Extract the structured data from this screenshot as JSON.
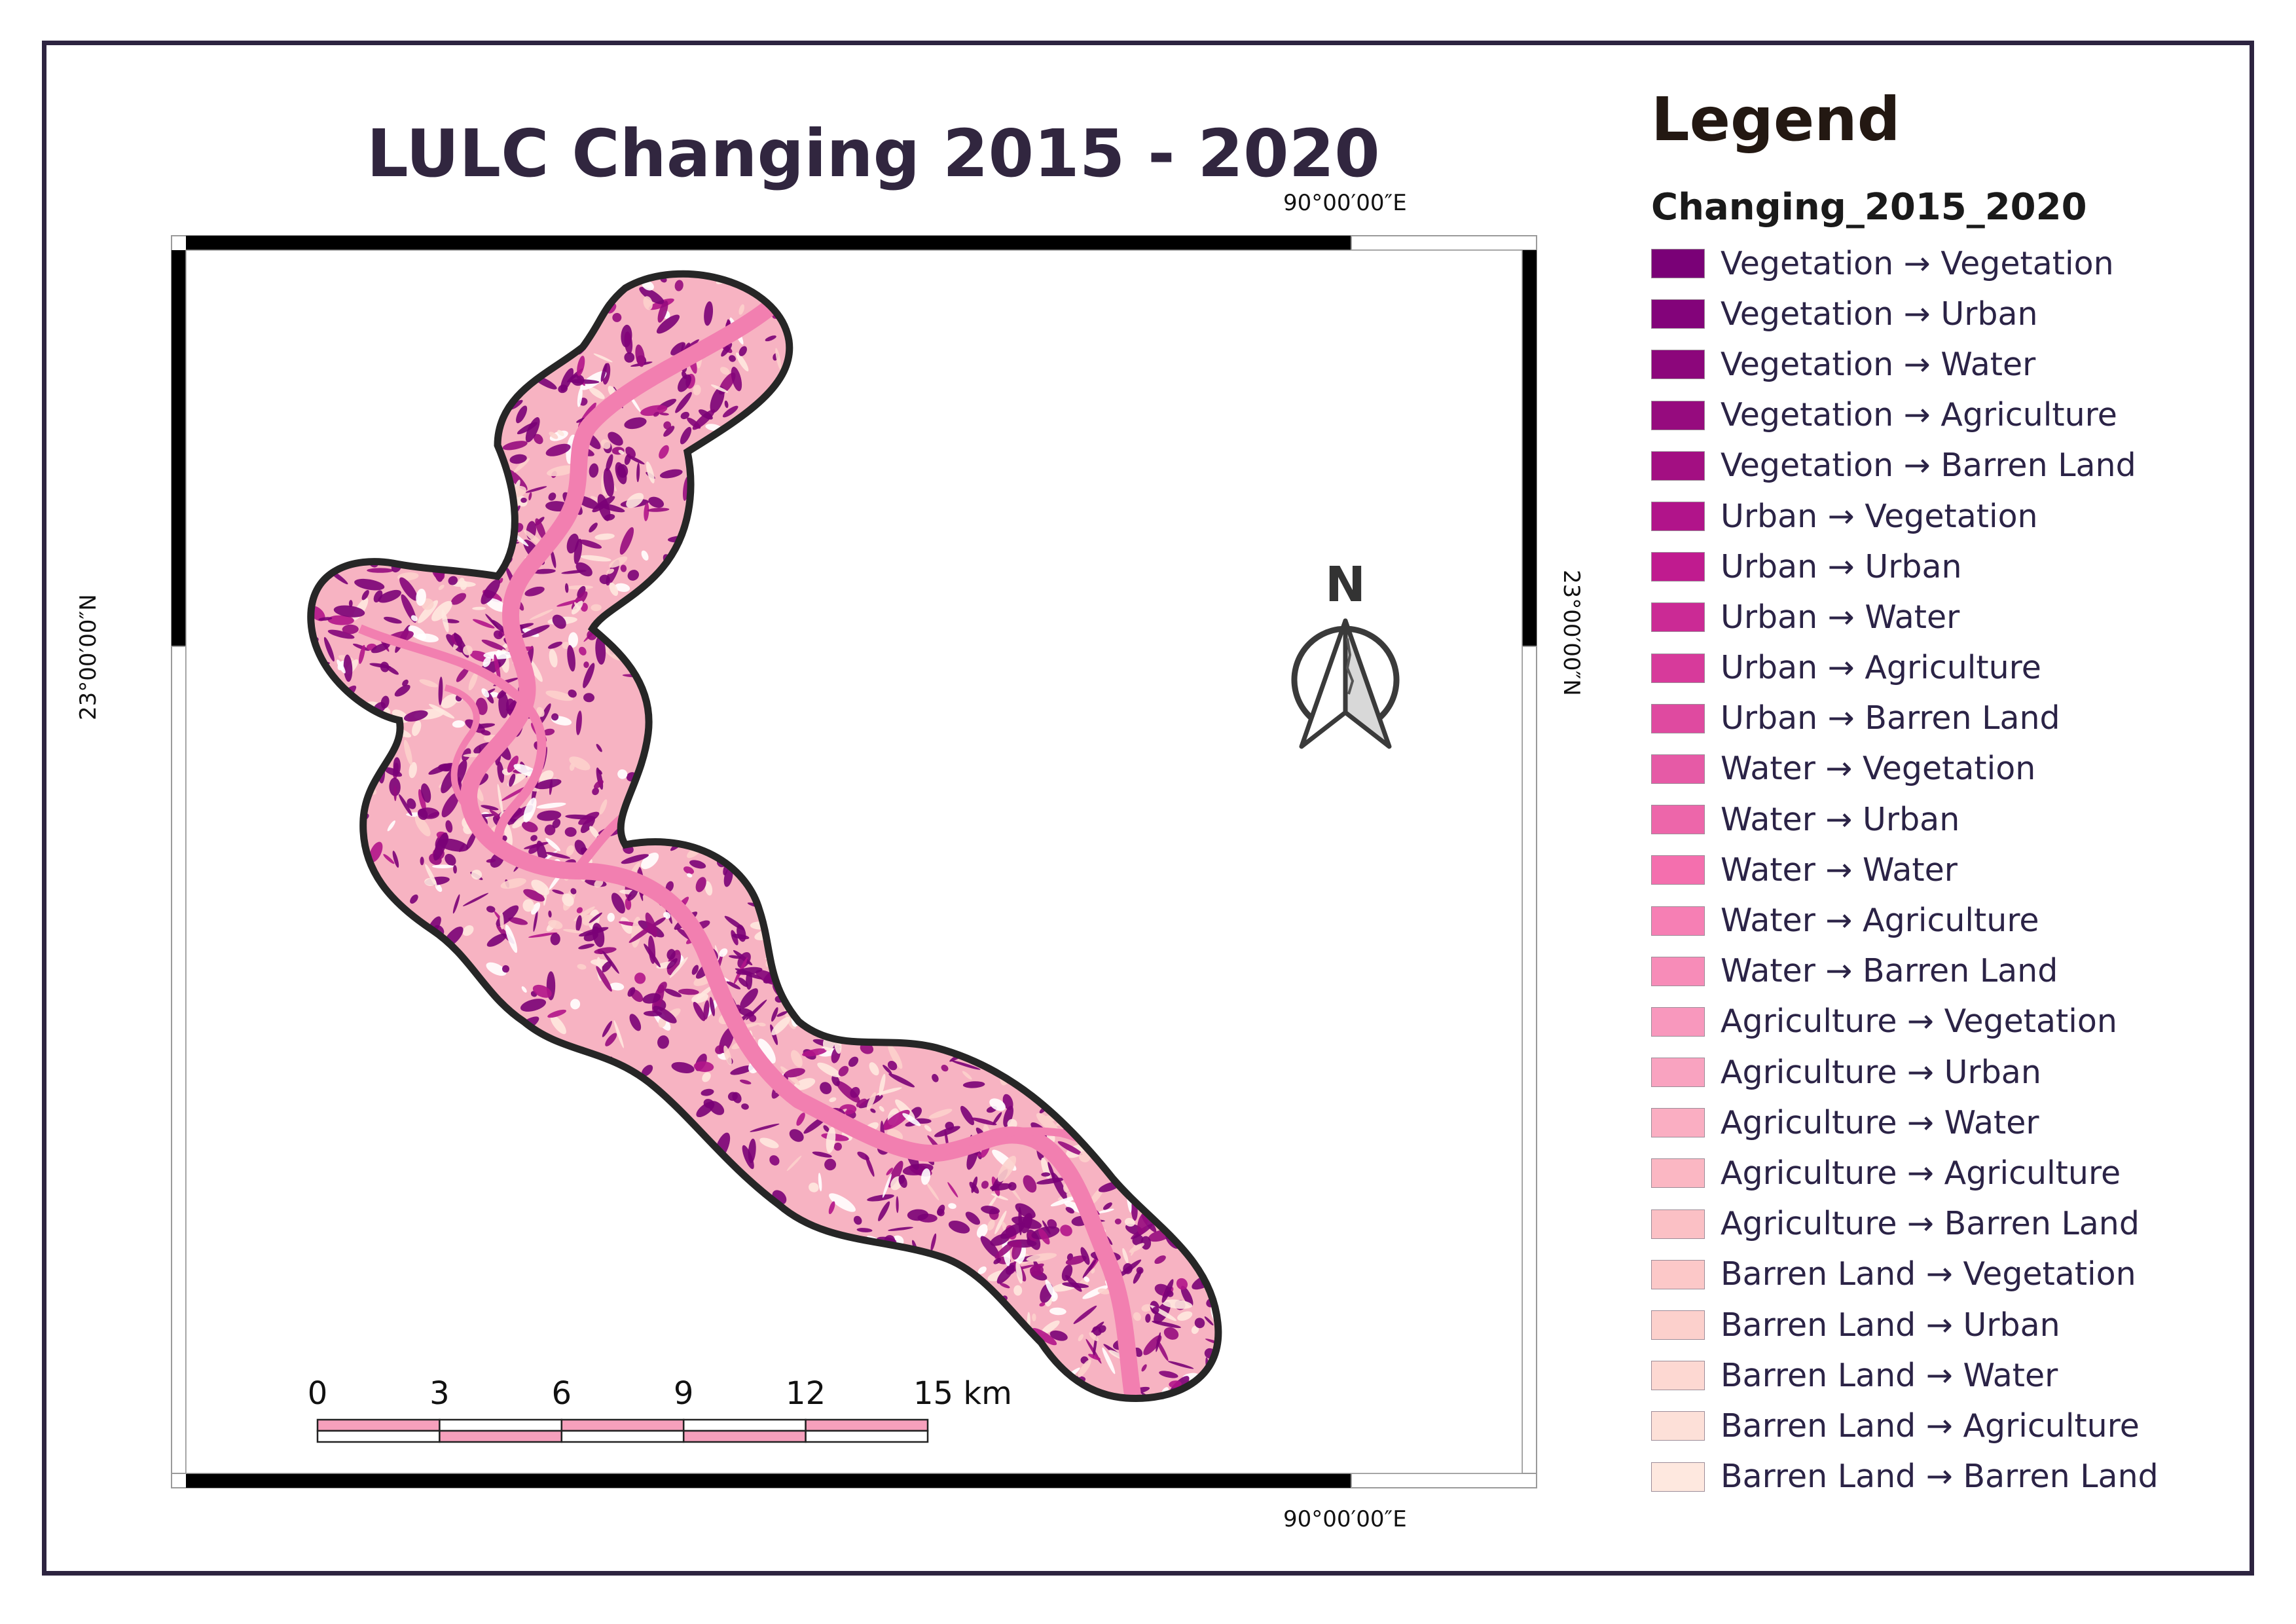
{
  "title": "LULC Changing 2015 - 2020",
  "grid_labels": {
    "top_lon": "90°00′00″E",
    "bottom_lon": "90°00′00″E",
    "left_lat": "23°00′00″N",
    "right_lat": "23°00′00″N"
  },
  "north_arrow": {
    "label": "N",
    "icon": "north-arrow-icon"
  },
  "scale_bar": {
    "labels": [
      "0",
      "3",
      "6",
      "9",
      "12",
      "15 km"
    ],
    "fill_color": "#f6a0bc"
  },
  "legend": {
    "title": "Legend",
    "layer_name": "Changing_2015_2020",
    "items": [
      {
        "label": "Vegetation → Vegetation",
        "color": "#7a0177"
      },
      {
        "label": "Vegetation → Urban",
        "color": "#83037a"
      },
      {
        "label": "Vegetation → Water",
        "color": "#8c067b"
      },
      {
        "label": "Vegetation → Agriculture",
        "color": "#960b7e"
      },
      {
        "label": "Vegetation → Barren Land",
        "color": "#a30f82"
      },
      {
        "label": "Urban → Vegetation",
        "color": "#b1148a"
      },
      {
        "label": "Urban → Urban",
        "color": "#c01b8f"
      },
      {
        "label": "Urban → Water",
        "color": "#cb2a95"
      },
      {
        "label": "Urban → Agriculture",
        "color": "#d73a9b"
      },
      {
        "label": "Urban → Barren Land",
        "color": "#df4aa0"
      },
      {
        "label": "Water → Vegetation",
        "color": "#e65aa6"
      },
      {
        "label": "Water → Urban",
        "color": "#ed66aa"
      },
      {
        "label": "Water → Water",
        "color": "#f46fae"
      },
      {
        "label": "Water → Agriculture",
        "color": "#f67fb4"
      },
      {
        "label": "Water → Barren Land",
        "color": "#f78cb8"
      },
      {
        "label": "Agriculture → Vegetation",
        "color": "#f898bd"
      },
      {
        "label": "Agriculture → Urban",
        "color": "#f9a3c0"
      },
      {
        "label": "Agriculture → Water",
        "color": "#faaec2"
      },
      {
        "label": "Agriculture → Agriculture",
        "color": "#fbb7c3"
      },
      {
        "label": "Agriculture → Barren Land",
        "color": "#fbc0c5"
      },
      {
        "label": "Barren Land → Vegetation",
        "color": "#fcc8c8"
      },
      {
        "label": "Barren Land → Urban",
        "color": "#fcd0cc"
      },
      {
        "label": "Barren Land → Water",
        "color": "#fdd8d2"
      },
      {
        "label": "Barren Land → Agriculture",
        "color": "#fde0d8"
      },
      {
        "label": "Barren Land → Barren Land",
        "color": "#fee8df"
      }
    ]
  },
  "colors": {
    "frame": "#2d2440",
    "study_area_base": "#f7b3c2",
    "river": "#f27fb0",
    "vegetation_patches": "#820078",
    "study_area_outline": "#262626"
  }
}
